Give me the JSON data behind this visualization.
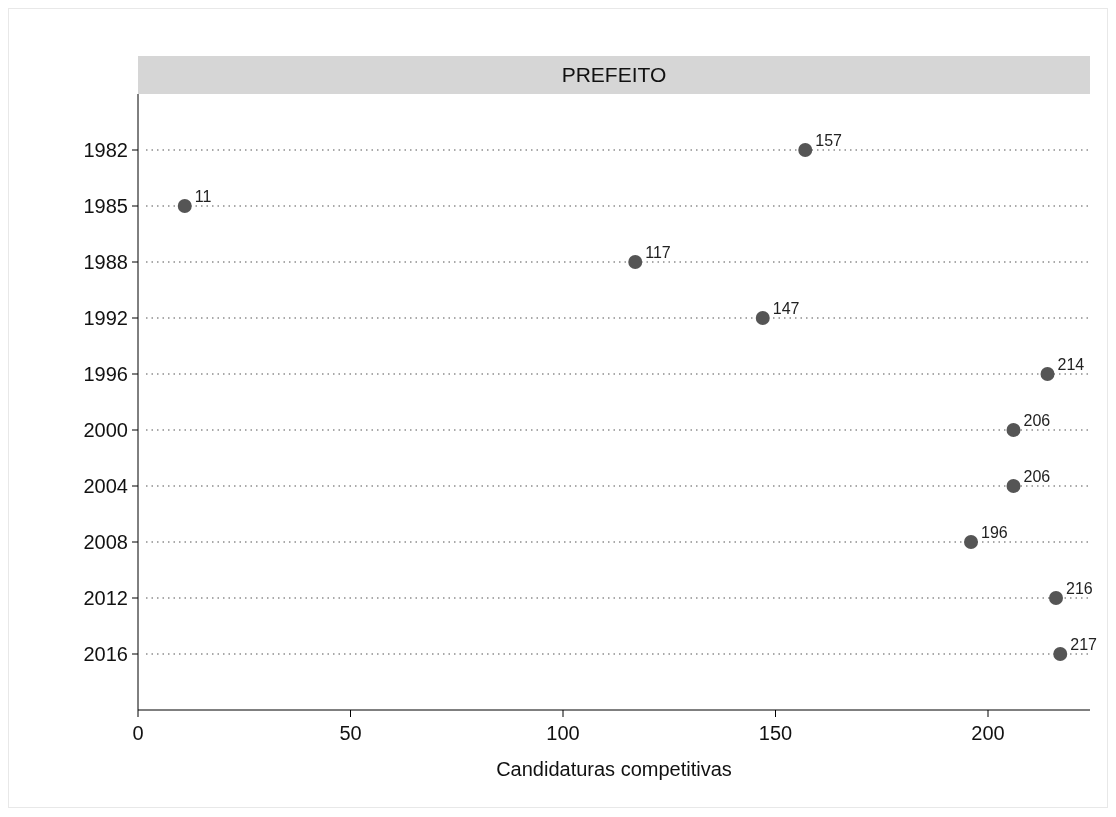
{
  "chart_data": {
    "type": "scatter",
    "orientation": "horizontal",
    "title": "PREFEITO",
    "xlabel": "Candidaturas competitivas",
    "categories": [
      "1982",
      "1985",
      "1988",
      "1992",
      "1996",
      "2000",
      "2004",
      "2008",
      "2012",
      "2016"
    ],
    "values": [
      157,
      11,
      117,
      147,
      214,
      206,
      206,
      196,
      216,
      217
    ],
    "color": "#555555",
    "marker": "circle",
    "data_labels": true,
    "grid": "y",
    "xlim": [
      0,
      224
    ],
    "xticks": [
      0,
      50,
      100,
      150,
      200
    ]
  }
}
